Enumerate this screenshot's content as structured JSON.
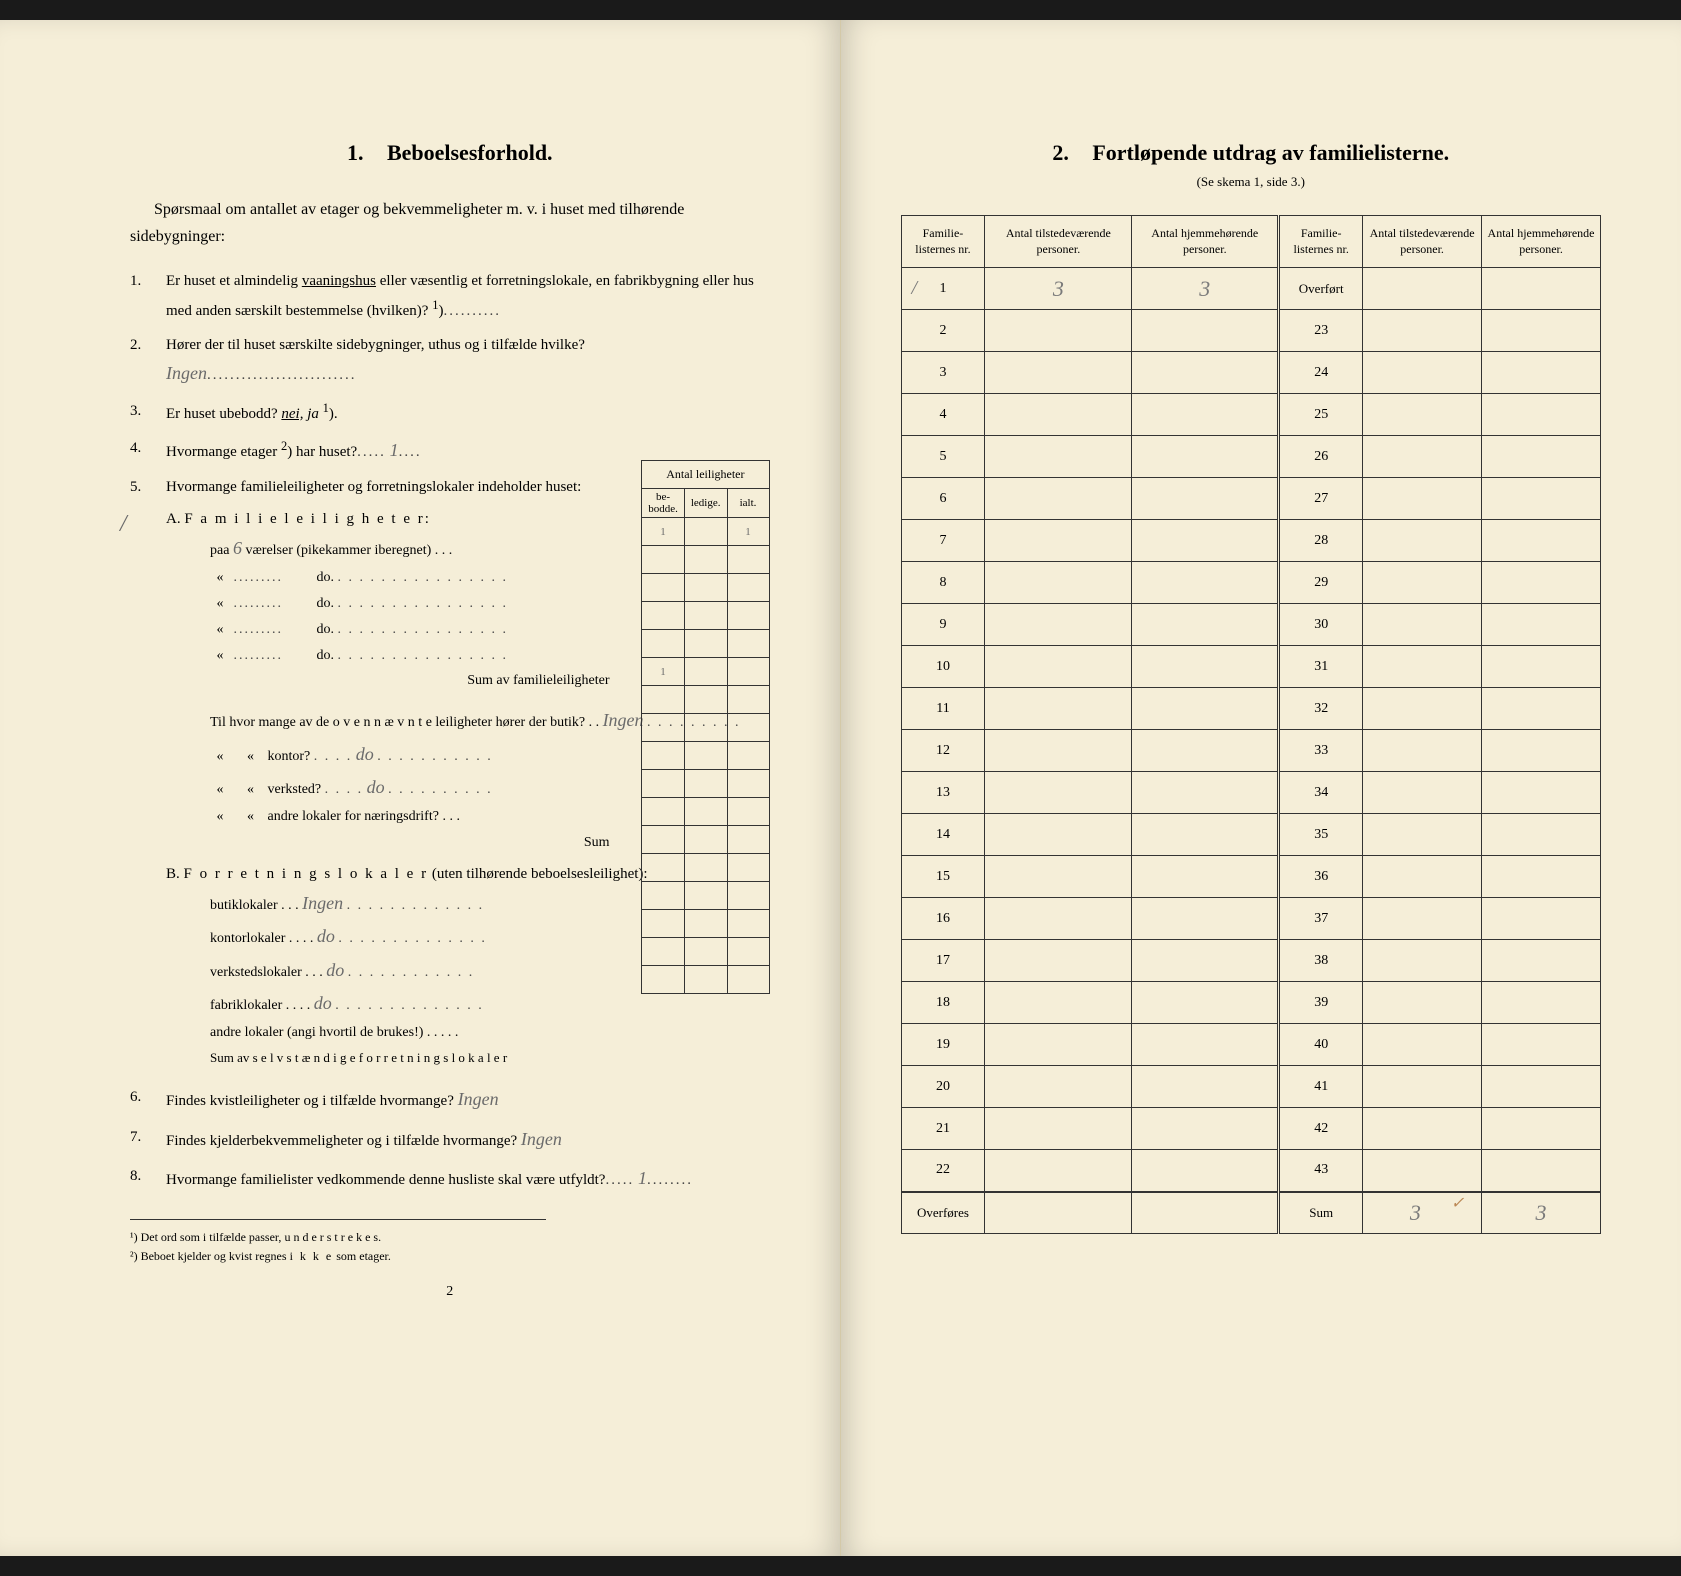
{
  "left": {
    "section_number": "1.",
    "section_title": "Beboelsesforhold.",
    "intro": "Spørsmaal om antallet av etager og bekvemmeligheter m. v. i huset med tilhørende sidebygninger:",
    "q1": "Er huset et almindelig",
    "q1_underlined": "vaaningshus",
    "q1_cont": "eller væsentlig et forretningslokale, en fabrikbygning eller hus med anden særskilt bestemmelse (hvilken)?",
    "q1_sup": "1",
    "q2": "Hører der til huset særskilte sidebygninger, uthus og i tilfælde hvilke?",
    "q2_answer": "Ingen",
    "q3": "Er huset ubebodd?",
    "q3_nei": "nei,",
    "q3_ja": "ja",
    "q3_sup": "1",
    "q4": "Hvormange etager",
    "q4_sup": "2",
    "q4_cont": ") har huset?",
    "q4_answer": "1",
    "q5": "Hvormange familieleiligheter og forretningslokaler indeholder huset:",
    "tbl_header": "Antal leiligheter",
    "tbl_col1": "be-bodde.",
    "tbl_col2": "ledige.",
    "tbl_col3": "ialt.",
    "subA": "A.",
    "subA_title": "F a m i l i e l e i l i g h e t e r:",
    "subA_line1_pre": "paa",
    "subA_line1_val": "6",
    "subA_line1_post": "værelser (pikekammer iberegnet) . . .",
    "subA_cell1": "1",
    "subA_cell3": "1",
    "do": "do.",
    "subA_sum": "Sum av familieleiligheter",
    "subA_sum_val": "1",
    "subA_sub1": "Til hvor mange av de o v e n n æ v n t e leiligheter hører der butik?",
    "subA_sub1_ans": "Ingen",
    "subA_sub2": "kontor?",
    "subA_sub2_ans": "do",
    "subA_sub3": "verksted?",
    "subA_sub3_ans": "do",
    "subA_sub4": "andre lokaler for næringsdrift? . . .",
    "subA_subsum": "Sum",
    "subB": "B.",
    "subB_title": "F o r r e t n i n g s l o k a l e r",
    "subB_title_cont": "(uten tilhørende beboelsesleilighet):",
    "subB_1": "butiklokaler . . .",
    "subB_1_ans": "Ingen",
    "subB_2": "kontorlokaler . . . .",
    "subB_2_ans": "do",
    "subB_3": "verkstedslokaler . . .",
    "subB_3_ans": "do",
    "subB_4": "fabriklokaler . . . .",
    "subB_4_ans": "do",
    "subB_5": "andre lokaler (angi hvortil de brukes!) . . . . .",
    "subB_sum": "Sum av s e l v s t æ n d i g e f o r r e t n i n g s l o k a l e r",
    "q6": "Findes kvistleiligheter og i tilfælde hvormange?",
    "q6_answer": "Ingen",
    "q7": "Findes kjelderbekvemmeligheter og i tilfælde hvormange?",
    "q7_answer": "Ingen",
    "q8": "Hvormange familielister vedkommende denne husliste skal være utfyldt?",
    "q8_answer": "1",
    "fn1_num": "¹)",
    "fn1": "Det ord som i tilfælde passer,",
    "fn1_u": "u n d e r s t r e k e s.",
    "fn2_num": "²)",
    "fn2": "Beboet kjelder og kvist regnes",
    "fn2_b": "i k k e",
    "fn2_cont": "som etager.",
    "page_num": "2"
  },
  "right": {
    "section_number": "2.",
    "section_title": "Fortløpende utdrag av familielisterne.",
    "subtitle": "(Se skema 1, side 3.)",
    "col1": "Familie-listernes nr.",
    "col2": "Antal tilstedeværende personer.",
    "col3": "Antal hjemmehørende personer.",
    "col4": "Familie-listernes nr.",
    "col5": "Antal tilstedeværende personer.",
    "col6": "Antal hjemmehørende personer.",
    "row1_val1": "3",
    "row1_val2": "3",
    "overfort": "Overført",
    "overfores": "Overføres",
    "sum_label": "Sum",
    "sum_val1": "3",
    "sum_val2": "3",
    "check": "✓",
    "rows_left": [
      "1",
      "2",
      "3",
      "4",
      "5",
      "6",
      "7",
      "8",
      "9",
      "10",
      "11",
      "12",
      "13",
      "14",
      "15",
      "16",
      "17",
      "18",
      "19",
      "20",
      "21",
      "22"
    ],
    "rows_right": [
      "23",
      "24",
      "25",
      "26",
      "27",
      "28",
      "29",
      "30",
      "31",
      "32",
      "33",
      "34",
      "35",
      "36",
      "37",
      "38",
      "39",
      "40",
      "41",
      "42",
      "43"
    ]
  }
}
